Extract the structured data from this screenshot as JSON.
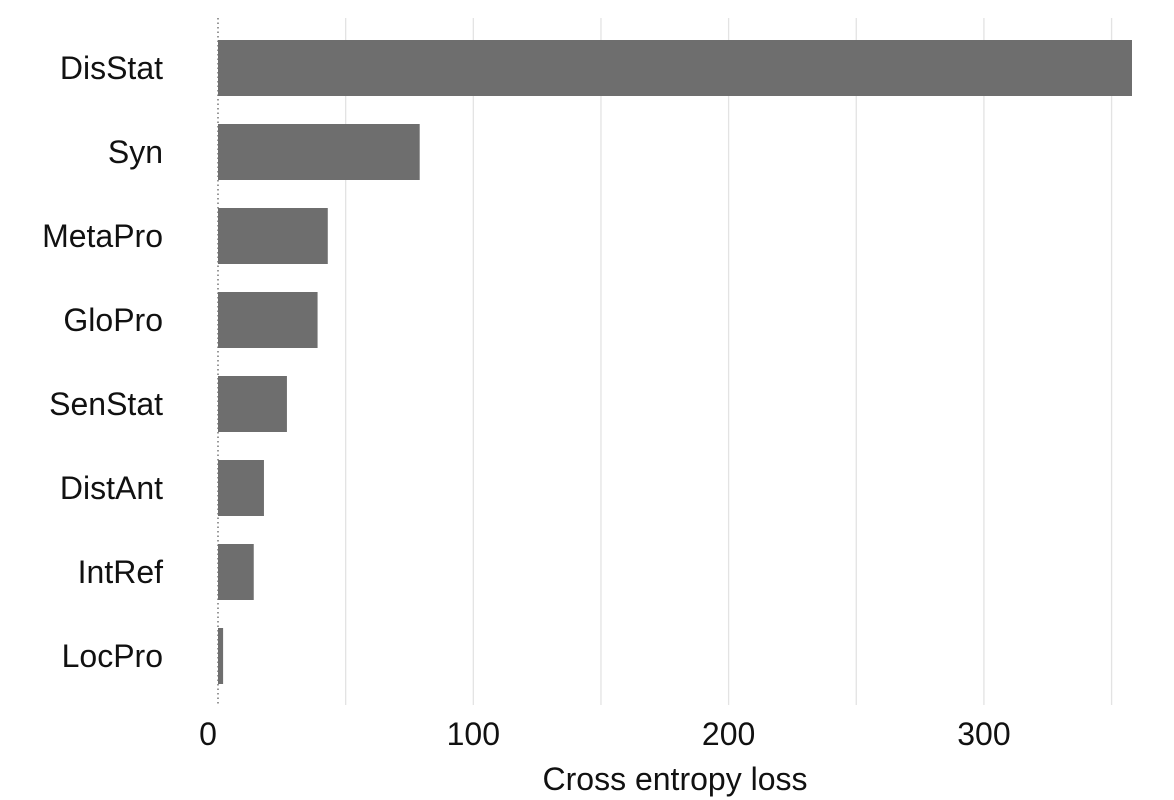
{
  "chart_data": {
    "type": "bar",
    "orientation": "horizontal",
    "title": "",
    "xlabel": "Cross entropy loss",
    "ylabel": "",
    "categories": [
      "DisStat",
      "Syn",
      "MetaPro",
      "GloPro",
      "SenStat",
      "DistAnt",
      "IntRef",
      "LocPro"
    ],
    "values": [
      358,
      79,
      43,
      39,
      27,
      18,
      14,
      2
    ],
    "xlim": [
      0,
      358
    ],
    "xticks": [
      0,
      100,
      200,
      300
    ],
    "xtick_labels": [
      "0",
      "100",
      "200",
      "300"
    ],
    "minor_grid": [
      50,
      150,
      250,
      350
    ],
    "grid": true,
    "legend": "none",
    "colors": {
      "bar": "#6e6e6e",
      "grid": "#e3e3e3",
      "text": "#111111"
    }
  }
}
